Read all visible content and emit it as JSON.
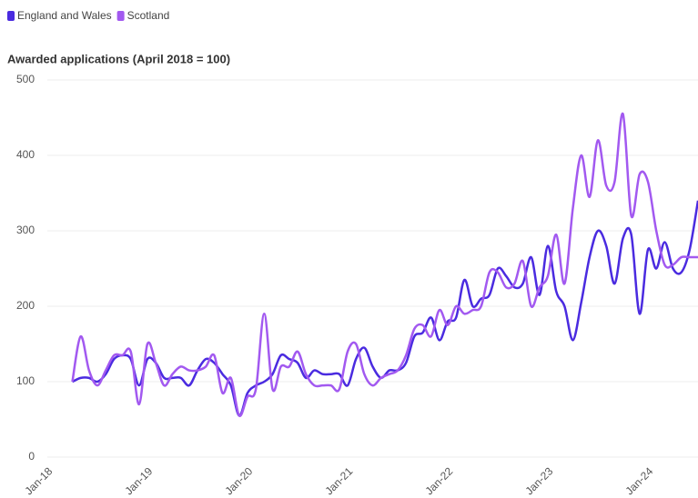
{
  "chart_data": {
    "type": "line",
    "title": "Awarded applications (April 2018 = 100)",
    "categories": [
      "Jan-18",
      null,
      null,
      null,
      null,
      null,
      null,
      null,
      null,
      null,
      null,
      null,
      "Jan-19",
      null,
      null,
      null,
      null,
      null,
      null,
      null,
      null,
      null,
      null,
      null,
      "Jan-20",
      null,
      null,
      null,
      null,
      null,
      null,
      null,
      null,
      null,
      null,
      null,
      "Jan-21",
      null,
      null,
      null,
      null,
      null,
      null,
      null,
      null,
      null,
      null,
      null,
      "Jan-22",
      null,
      null,
      null,
      null,
      null,
      null,
      null,
      null,
      null,
      null,
      null,
      "Jan-23",
      null,
      null,
      null,
      null,
      null,
      null,
      null,
      null,
      null,
      null,
      null,
      "Jan-24",
      null,
      null,
      null,
      null,
      null,
      null
    ],
    "series": [
      {
        "name": "England and Wales",
        "color": "#4a2be0",
        "values": [
          null,
          null,
          null,
          100,
          105,
          105,
          100,
          110,
          130,
          135,
          130,
          95,
          130,
          125,
          105,
          105,
          105,
          95,
          115,
          130,
          125,
          110,
          95,
          55,
          85,
          95,
          100,
          110,
          135,
          130,
          125,
          105,
          115,
          110,
          110,
          110,
          95,
          130,
          145,
          120,
          105,
          115,
          115,
          125,
          160,
          165,
          185,
          155,
          180,
          185,
          235,
          200,
          210,
          215,
          250,
          240,
          225,
          230,
          265,
          215,
          280,
          220,
          200,
          155,
          205,
          265,
          300,
          280,
          230,
          290,
          295,
          190,
          275,
          250,
          285,
          250,
          245,
          275,
          340
        ]
      },
      {
        "name": "Scotland",
        "color": "#a259f0",
        "values": [
          null,
          null,
          null,
          100,
          160,
          115,
          95,
          115,
          135,
          135,
          140,
          70,
          150,
          125,
          95,
          110,
          120,
          115,
          115,
          120,
          135,
          85,
          105,
          55,
          80,
          90,
          190,
          90,
          120,
          120,
          140,
          110,
          95,
          95,
          95,
          90,
          140,
          150,
          110,
          95,
          105,
          110,
          115,
          135,
          170,
          175,
          160,
          195,
          175,
          200,
          190,
          195,
          200,
          245,
          245,
          225,
          230,
          260,
          200,
          225,
          240,
          295,
          230,
          330,
          400,
          345,
          420,
          360,
          365,
          455,
          320,
          375,
          365,
          300,
          255,
          255,
          265,
          265,
          265
        ]
      }
    ],
    "ylim": [
      0,
      500
    ],
    "yticks": [
      0,
      100,
      200,
      300,
      400,
      500
    ],
    "grid": true
  }
}
